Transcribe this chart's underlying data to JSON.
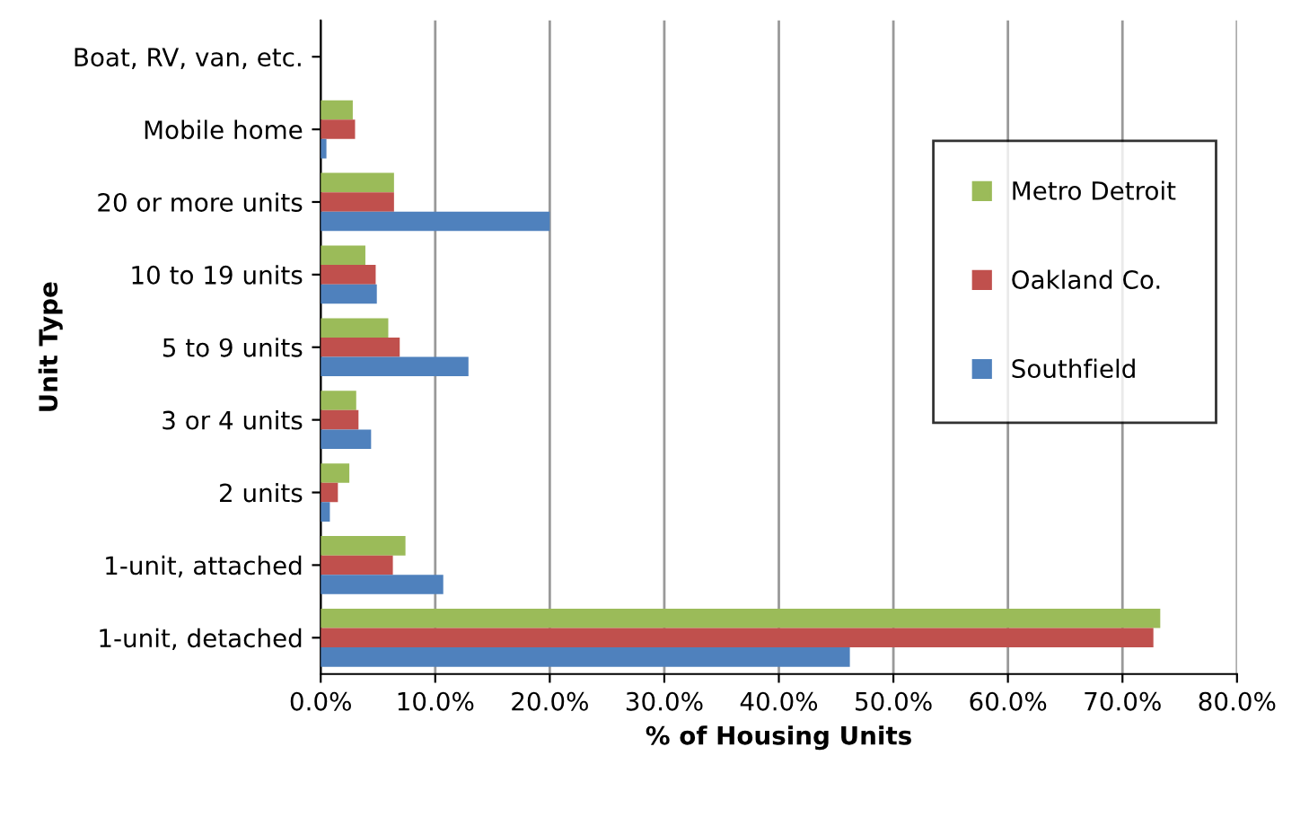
{
  "chart_data": {
    "type": "bar",
    "orientation": "horizontal",
    "xlabel": "% of Housing Units",
    "ylabel": "Unit Type",
    "categories": [
      "Boat, RV, van, etc.",
      "Mobile home",
      "20 or more units",
      "10 to 19 units",
      "5 to 9 units",
      "3 or 4 units",
      "2 units",
      "1-unit, attached",
      "1-unit, detached"
    ],
    "series": [
      {
        "name": "Metro Detroit",
        "color": "#9bbb59",
        "values": [
          0,
          2.8,
          6.4,
          3.9,
          5.9,
          3.1,
          2.5,
          7.4,
          73.3
        ]
      },
      {
        "name": "Oakland Co.",
        "color": "#c0504d",
        "values": [
          0,
          3.0,
          6.4,
          4.8,
          6.9,
          3.3,
          1.5,
          6.3,
          72.7
        ]
      },
      {
        "name": "Southfield",
        "color": "#4f81bd",
        "values": [
          0,
          0.5,
          20.0,
          4.9,
          12.9,
          4.4,
          0.8,
          10.7,
          46.2
        ]
      }
    ],
    "xlim": [
      0,
      80
    ],
    "xticks": [
      {
        "value": 0,
        "label": "0.0%"
      },
      {
        "value": 10,
        "label": "10.0%"
      },
      {
        "value": 20,
        "label": "20.0%"
      },
      {
        "value": 30,
        "label": "30.0%"
      },
      {
        "value": 40,
        "label": "40.0%"
      },
      {
        "value": 50,
        "label": "50.0%"
      },
      {
        "value": 60,
        "label": "60.0%"
      },
      {
        "value": 70,
        "label": "70.0%"
      },
      {
        "value": 80,
        "label": "80.0%"
      }
    ],
    "grid": "x",
    "legend": "right"
  }
}
